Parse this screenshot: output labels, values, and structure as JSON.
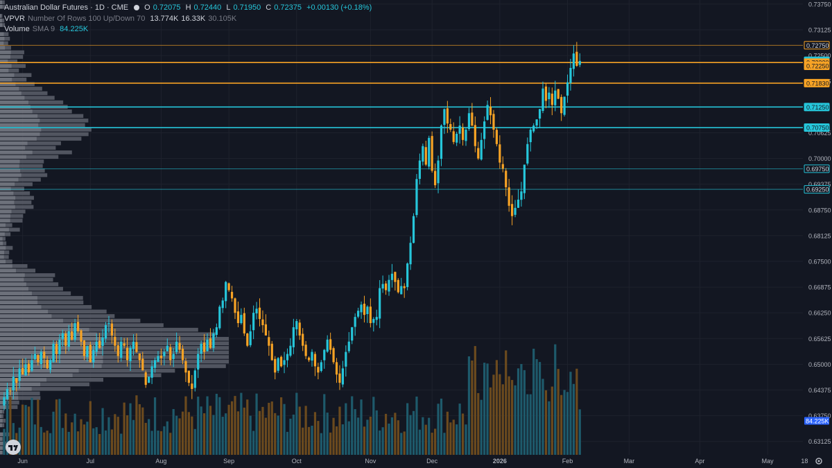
{
  "header": {
    "symbol_title": "Australian Dollar Futures · 1D · CME",
    "ohlc": [
      {
        "key": "O",
        "value": "0.72075"
      },
      {
        "key": "H",
        "value": "0.72440"
      },
      {
        "key": "L",
        "value": "0.71950"
      },
      {
        "key": "C",
        "value": "0.72375"
      },
      {
        "key": "",
        "value": "+0.00130 (+0.18%)"
      }
    ],
    "vpvr_label": "VPVR",
    "vpvr_settings": "Number Of Rows 100 Up/Down 70",
    "vpvr_values": [
      "13.774K",
      "16.33K",
      "30.105K"
    ],
    "volume_label": "Volume",
    "volume_settings": "SMA 9",
    "volume_value": "84.225K"
  },
  "colors": {
    "background": "#131722",
    "grid": "#1e222d",
    "up": "#26c6da",
    "down": "#f7a325",
    "vp_bar": "#5d606b",
    "vp_bar_light": "#8a8d96",
    "vol_up": "#1e5a6b",
    "vol_down": "#6b4a1e",
    "level_orange": "#f7a325",
    "level_cyan": "#26c6da",
    "text": "#d1d4dc",
    "axis_text": "#b2b5be"
  },
  "icons": {
    "logo": "tradingview-logo-icon",
    "settings": "gear-icon"
  },
  "chart_data": {
    "type": "candlestick",
    "symbol": "Australian Dollar Futures",
    "interval": "1D",
    "exchange": "CME",
    "ylim": [
      0.628,
      0.7385
    ],
    "y_ticks": [
      "0.73750",
      "0.73125",
      "0.72500",
      "0.71875",
      "0.71250",
      "0.70625",
      "0.70000",
      "0.69375",
      "0.68750",
      "0.68125",
      "0.67500",
      "0.66875",
      "0.66250",
      "0.65625",
      "0.65000",
      "0.64375",
      "0.63750",
      "0.63125"
    ],
    "x_labels": [
      {
        "label": "Jun",
        "i": 6
      },
      {
        "label": "Jul",
        "i": 28
      },
      {
        "label": "Aug",
        "i": 51
      },
      {
        "label": "Sep",
        "i": 73
      },
      {
        "label": "Oct",
        "i": 95
      },
      {
        "label": "Nov",
        "i": 119
      },
      {
        "label": "Dec",
        "i": 139
      },
      {
        "label": "2026",
        "i": 161
      },
      {
        "label": "Feb",
        "i": 183
      },
      {
        "label": "Mar",
        "i": 203
      },
      {
        "label": "Apr",
        "i": 226
      },
      {
        "label": "May",
        "i": 248
      },
      {
        "label": "18",
        "i": 260
      }
    ],
    "levels": [
      {
        "price": 0.7275,
        "label": "0.72750",
        "color": "orange",
        "style": "thin"
      },
      {
        "price": 0.72375,
        "label": "0.72375",
        "color": "cyan",
        "style": "tag"
      },
      {
        "price": 0.7233,
        "label": "0.72330",
        "color": "orange",
        "style": "thick"
      },
      {
        "price": 0.7225,
        "label": "0.72250",
        "color": "orange",
        "style": "tag"
      },
      {
        "price": 0.7183,
        "label": "0.71830",
        "color": "orange",
        "style": "thick"
      },
      {
        "price": 0.7125,
        "label": "0.71250",
        "color": "cyan",
        "style": "thick"
      },
      {
        "price": 0.7075,
        "label": "0.70750",
        "color": "cyan",
        "style": "thick"
      },
      {
        "price": 0.6975,
        "label": "0.69750",
        "color": "cyan",
        "style": "thin"
      },
      {
        "price": 0.6925,
        "label": "0.69250",
        "color": "cyan",
        "style": "thin"
      }
    ],
    "volume_last_label": "84.225K",
    "closes": [
      0.642,
      0.644,
      0.6435,
      0.647,
      0.6455,
      0.649,
      0.6475,
      0.65,
      0.648,
      0.651,
      0.6525,
      0.6505,
      0.653,
      0.6515,
      0.649,
      0.651,
      0.655,
      0.6525,
      0.656,
      0.6575,
      0.6545,
      0.658,
      0.656,
      0.66,
      0.658,
      0.6555,
      0.652,
      0.6545,
      0.6505,
      0.6535,
      0.6555,
      0.654,
      0.6565,
      0.6595,
      0.66,
      0.657,
      0.6545,
      0.652,
      0.6555,
      0.6545,
      0.651,
      0.654,
      0.6555,
      0.653,
      0.651,
      0.6485,
      0.645,
      0.647,
      0.6495,
      0.651,
      0.652,
      0.6515,
      0.653,
      0.6545,
      0.651,
      0.6525,
      0.6555,
      0.6535,
      0.651,
      0.648,
      0.6455,
      0.644,
      0.6485,
      0.6525,
      0.655,
      0.653,
      0.656,
      0.654,
      0.6575,
      0.659,
      0.664,
      0.6655,
      0.67,
      0.668,
      0.666,
      0.6625,
      0.66,
      0.662,
      0.6575,
      0.6545,
      0.658,
      0.6625,
      0.6635,
      0.661,
      0.6595,
      0.657,
      0.6545,
      0.651,
      0.648,
      0.6515,
      0.6495,
      0.651,
      0.6525,
      0.6545,
      0.659,
      0.6605,
      0.657,
      0.6545,
      0.652,
      0.651,
      0.653,
      0.6495,
      0.648,
      0.6505,
      0.6535,
      0.656,
      0.6535,
      0.6505,
      0.6475,
      0.6455,
      0.649,
      0.653,
      0.6555,
      0.659,
      0.6615,
      0.663,
      0.6645,
      0.662,
      0.664,
      0.66,
      0.661,
      0.6615,
      0.6685,
      0.6695,
      0.668,
      0.6705,
      0.672,
      0.67,
      0.6675,
      0.669,
      0.6685,
      0.6745,
      0.6795,
      0.686,
      0.695,
      0.6995,
      0.703,
      0.6985,
      0.705,
      0.697,
      0.6935,
      0.6995,
      0.708,
      0.712,
      0.7085,
      0.707,
      0.704,
      0.706,
      0.708,
      0.7045,
      0.707,
      0.711,
      0.708,
      0.703,
      0.7,
      0.7045,
      0.709,
      0.713,
      0.7105,
      0.707,
      0.7035,
      0.699,
      0.6975,
      0.693,
      0.6885,
      0.686,
      0.688,
      0.69,
      0.692,
      0.6985,
      0.7035,
      0.707,
      0.708,
      0.7095,
      0.712,
      0.717,
      0.714,
      0.716,
      0.713,
      0.7165,
      0.7145,
      0.711,
      0.715,
      0.7185,
      0.722,
      0.7255,
      0.7225,
      0.7237
    ]
  }
}
